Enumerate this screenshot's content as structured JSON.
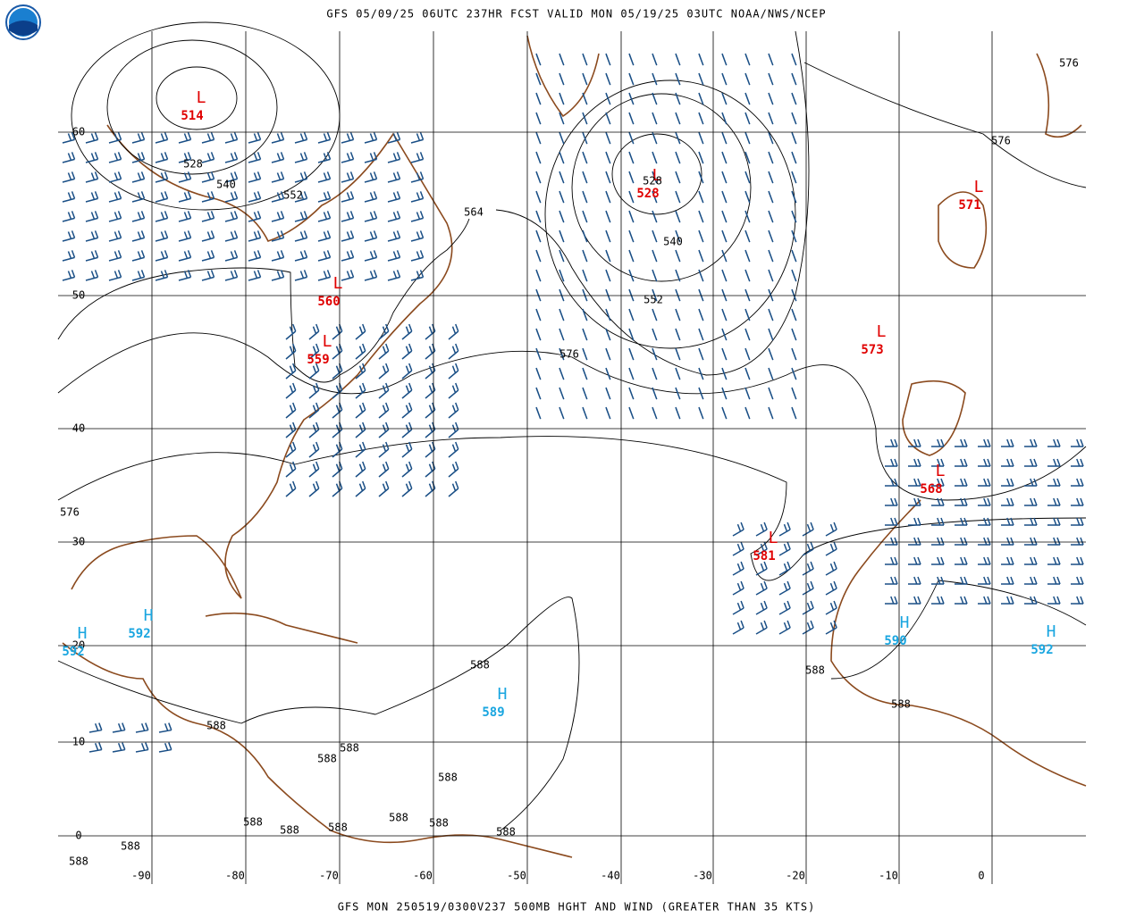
{
  "header": {
    "title": "GFS 05/09/25 06UTC 237HR FCST VALID MON 05/19/25 03UTC NOAA/NWS/NCEP"
  },
  "footer": {
    "text": "GFS MON 250519/0300V237 500MB HGHT AND WIND (GREATER THAN 35 KTS)"
  },
  "lat_labels": [
    "60",
    "50",
    "40",
    "30",
    "20",
    "10",
    "0"
  ],
  "lon_labels": [
    "-90",
    "-80",
    "-70",
    "-60",
    "-50",
    "-40",
    "-30",
    "-20",
    "-10",
    "0"
  ],
  "centers": [
    {
      "letter": "L",
      "value": "514"
    },
    {
      "letter": "L",
      "value": "528"
    },
    {
      "letter": "L",
      "value": "571"
    },
    {
      "letter": "L",
      "value": "560"
    },
    {
      "letter": "L",
      "value": "559"
    },
    {
      "letter": "L",
      "value": "573"
    },
    {
      "letter": "L",
      "value": "568"
    },
    {
      "letter": "L",
      "value": "581"
    },
    {
      "letter": "H",
      "value": "592"
    },
    {
      "letter": "H",
      "value": "592"
    },
    {
      "letter": "H",
      "value": "589"
    },
    {
      "letter": "H",
      "value": "590"
    },
    {
      "letter": "H",
      "value": "592"
    }
  ],
  "contour_labels": [
    "528",
    "540",
    "552",
    "564",
    "528",
    "540",
    "552",
    "576",
    "576",
    "576",
    "576",
    "588",
    "588",
    "588",
    "588",
    "588",
    "588",
    "588",
    "588",
    "588",
    "588",
    "588",
    "588",
    "588",
    "588",
    "588"
  ]
}
